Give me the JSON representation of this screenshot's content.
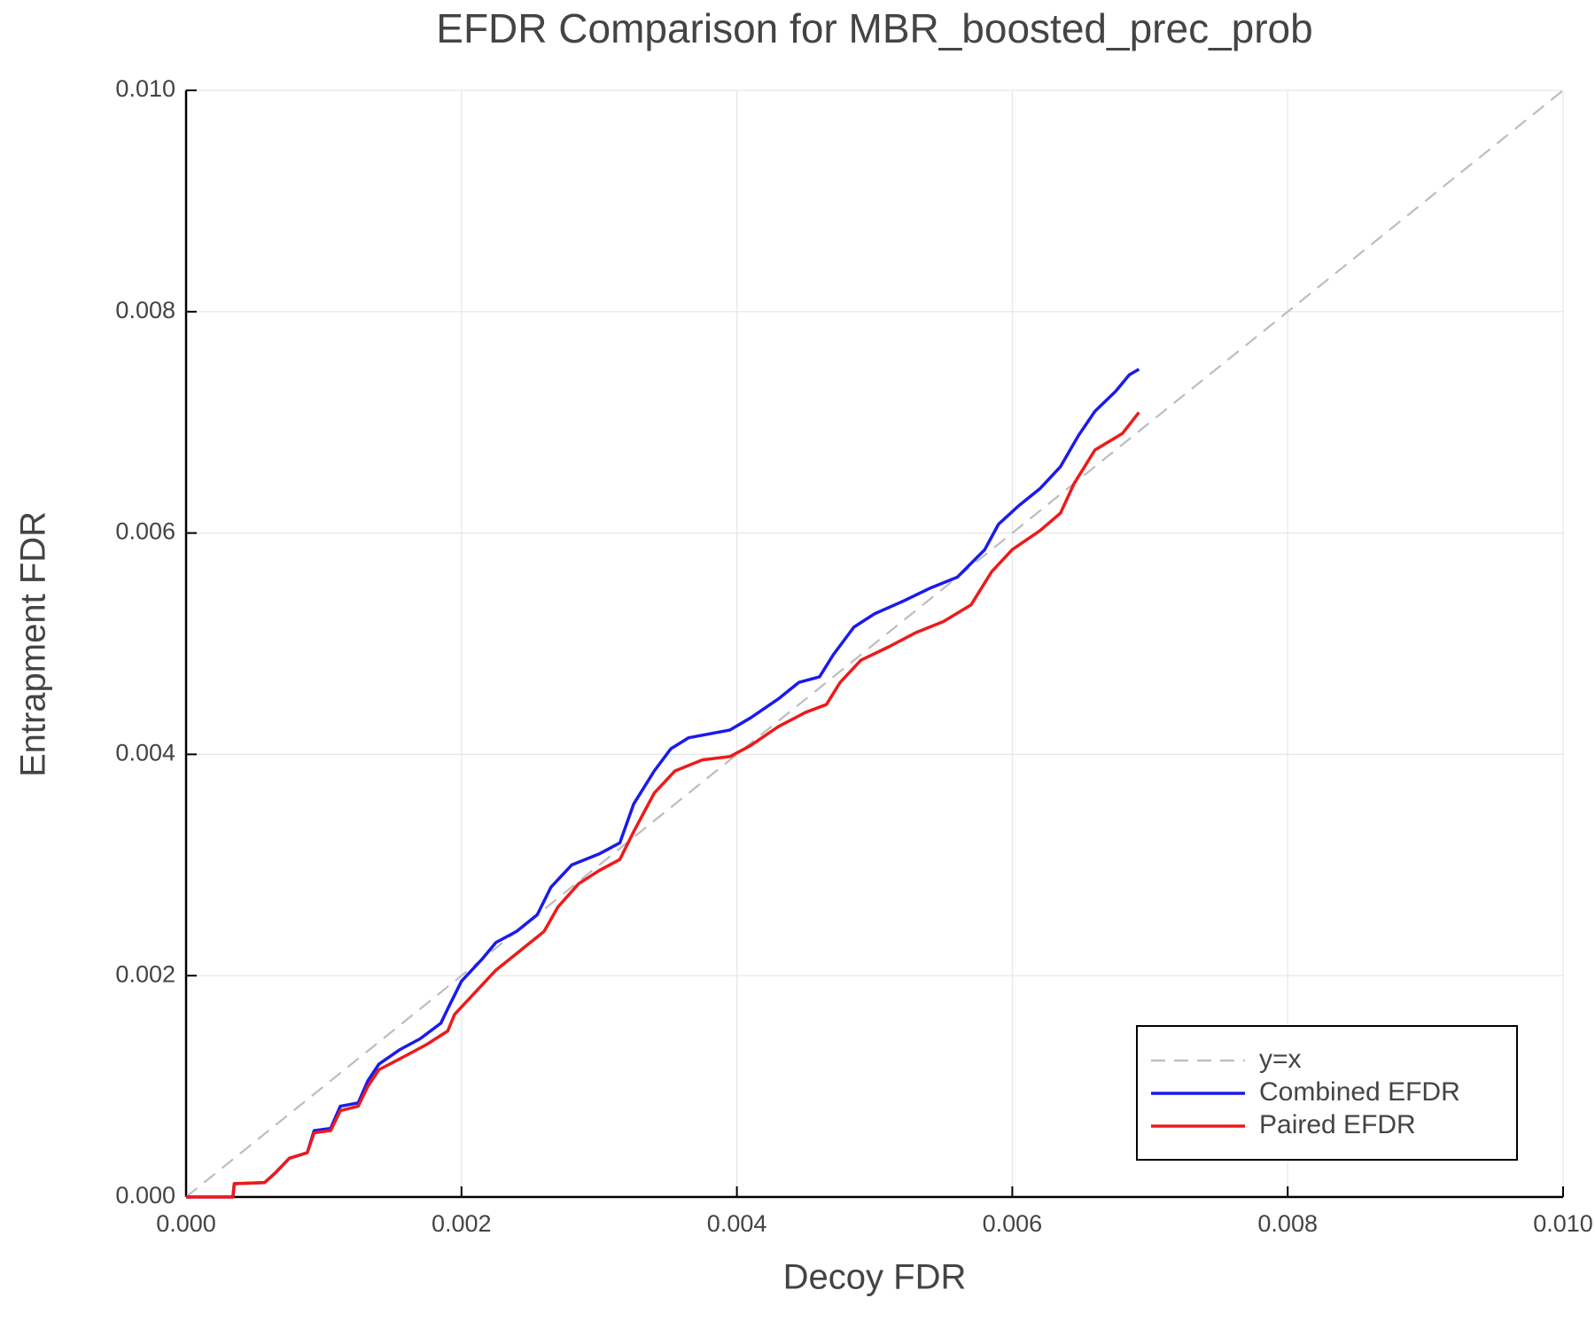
{
  "chart_data": {
    "type": "line",
    "title": "EFDR Comparison for MBR_boosted_prec_prob",
    "xlabel": "Decoy FDR",
    "ylabel": "Entrapment FDR",
    "xlim": [
      0,
      0.01
    ],
    "ylim": [
      0,
      0.01
    ],
    "xticks": [
      {
        "value": 0,
        "label": "0.000"
      },
      {
        "value": 0.002,
        "label": "0.002"
      },
      {
        "value": 0.004,
        "label": "0.004"
      },
      {
        "value": 0.006,
        "label": "0.006"
      },
      {
        "value": 0.008,
        "label": "0.008"
      },
      {
        "value": 0.01,
        "label": "0.010"
      }
    ],
    "yticks": [
      {
        "value": 0,
        "label": "0.000"
      },
      {
        "value": 0.002,
        "label": "0.002"
      },
      {
        "value": 0.004,
        "label": "0.004"
      },
      {
        "value": 0.006,
        "label": "0.006"
      },
      {
        "value": 0.008,
        "label": "0.008"
      },
      {
        "value": 0.01,
        "label": "0.010"
      }
    ],
    "grid": true,
    "legend": "bottom-right",
    "series": [
      {
        "name": "y=x",
        "color": "#bdbdbd",
        "dashed": true,
        "x": [
          0,
          0.01
        ],
        "values": [
          0,
          0.01
        ]
      },
      {
        "name": "Combined EFDR",
        "color": "#1a1aee",
        "dashed": false,
        "x": [
          0,
          0.00034,
          0.00035,
          0.00057,
          0.00065,
          0.00075,
          0.00088,
          0.00093,
          0.00105,
          0.00112,
          0.00125,
          0.00132,
          0.0014,
          0.00155,
          0.0017,
          0.00185,
          0.0019,
          0.002,
          0.00215,
          0.00225,
          0.0024,
          0.00255,
          0.00265,
          0.0028,
          0.003,
          0.00315,
          0.00325,
          0.0034,
          0.00352,
          0.00365,
          0.00395,
          0.0041,
          0.0043,
          0.00445,
          0.0046,
          0.0047,
          0.00485,
          0.005,
          0.0052,
          0.0054,
          0.0056,
          0.0058,
          0.0059,
          0.00605,
          0.0062,
          0.00635,
          0.00648,
          0.0066,
          0.00675,
          0.00685,
          0.00692
        ],
        "values": [
          0,
          0,
          0.00012,
          0.00013,
          0.00022,
          0.00035,
          0.0004,
          0.0006,
          0.00062,
          0.00082,
          0.00085,
          0.00105,
          0.0012,
          0.00133,
          0.00143,
          0.00157,
          0.0017,
          0.00195,
          0.00215,
          0.0023,
          0.0024,
          0.00255,
          0.0028,
          0.003,
          0.0031,
          0.0032,
          0.00355,
          0.00385,
          0.00405,
          0.00415,
          0.00422,
          0.00433,
          0.0045,
          0.00465,
          0.0047,
          0.0049,
          0.00515,
          0.00527,
          0.00538,
          0.0055,
          0.0056,
          0.00585,
          0.00608,
          0.00625,
          0.0064,
          0.0066,
          0.00688,
          0.0071,
          0.00728,
          0.00743,
          0.00748
        ]
      },
      {
        "name": "Paired EFDR",
        "color": "#ee1a1a",
        "dashed": false,
        "x": [
          0,
          0.00034,
          0.00035,
          0.00057,
          0.00065,
          0.00075,
          0.00088,
          0.00093,
          0.00105,
          0.00112,
          0.00125,
          0.00132,
          0.0014,
          0.0016,
          0.00175,
          0.0019,
          0.00195,
          0.0021,
          0.00225,
          0.0024,
          0.0026,
          0.0027,
          0.00285,
          0.003,
          0.00315,
          0.00325,
          0.0034,
          0.00355,
          0.00375,
          0.00395,
          0.0041,
          0.0043,
          0.0045,
          0.00465,
          0.00475,
          0.0049,
          0.0051,
          0.0053,
          0.0055,
          0.0057,
          0.00585,
          0.006,
          0.0062,
          0.00635,
          0.00645,
          0.0066,
          0.0068,
          0.00692
        ],
        "values": [
          0,
          0,
          0.00012,
          0.00013,
          0.00022,
          0.00035,
          0.0004,
          0.00058,
          0.0006,
          0.00078,
          0.00082,
          0.001,
          0.00115,
          0.00128,
          0.00138,
          0.0015,
          0.00165,
          0.00185,
          0.00205,
          0.0022,
          0.0024,
          0.00262,
          0.00283,
          0.00295,
          0.00305,
          0.0033,
          0.00365,
          0.00385,
          0.00395,
          0.00398,
          0.00408,
          0.00425,
          0.00438,
          0.00445,
          0.00465,
          0.00485,
          0.00497,
          0.0051,
          0.0052,
          0.00535,
          0.00565,
          0.00585,
          0.00602,
          0.00618,
          0.00645,
          0.00675,
          0.0069,
          0.00709
        ]
      }
    ]
  }
}
